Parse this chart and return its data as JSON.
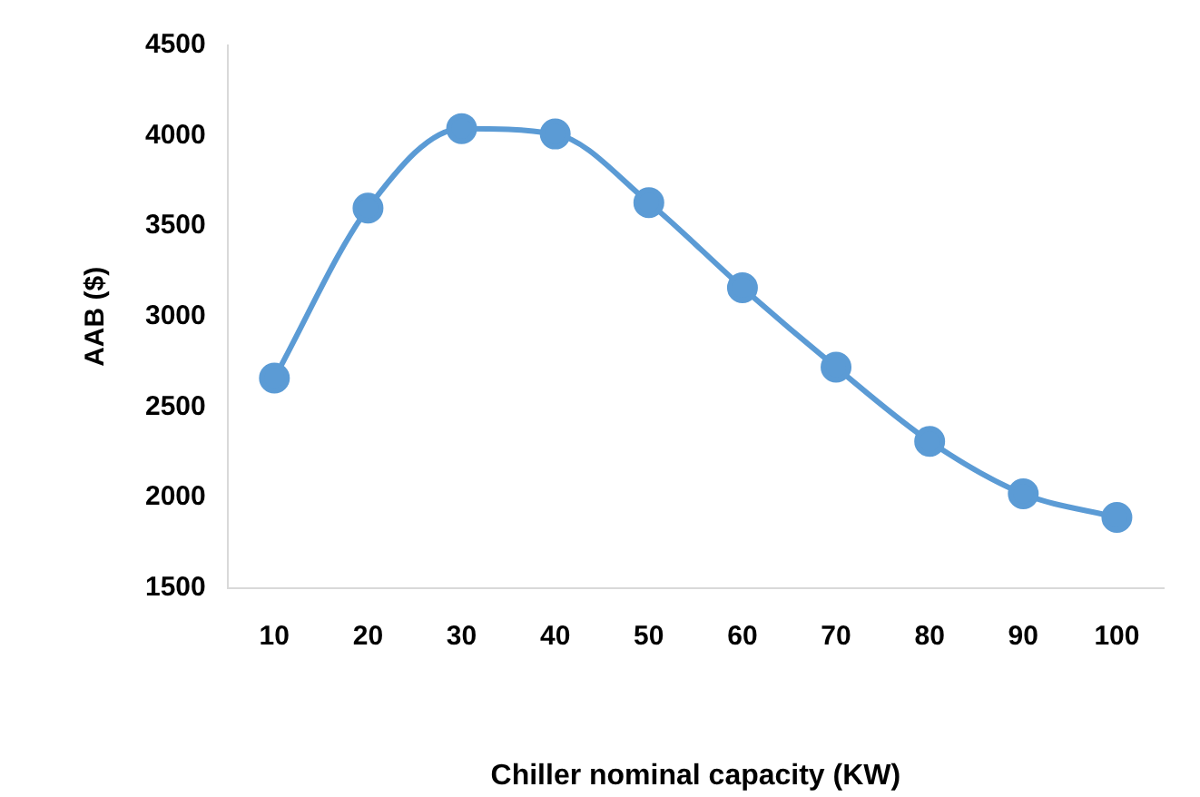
{
  "chart_data": {
    "type": "line",
    "xlabel": "Chiller nominal capacity (KW)",
    "ylabel": "AAB ($)",
    "categories": [
      "10",
      "20",
      "30",
      "40",
      "50",
      "60",
      "70",
      "80",
      "90",
      "100"
    ],
    "series": [
      {
        "color": "#5b9bd5",
        "values": [
          2660,
          3600,
          4040,
          4010,
          3630,
          3160,
          2720,
          2310,
          2020,
          1890
        ]
      }
    ],
    "ylim": [
      1500,
      4500
    ],
    "yticks": [
      1500,
      2000,
      2500,
      3000,
      3500,
      4000,
      4500
    ],
    "grid": false,
    "legend": false,
    "marker": "circle",
    "line_style": "solid"
  }
}
